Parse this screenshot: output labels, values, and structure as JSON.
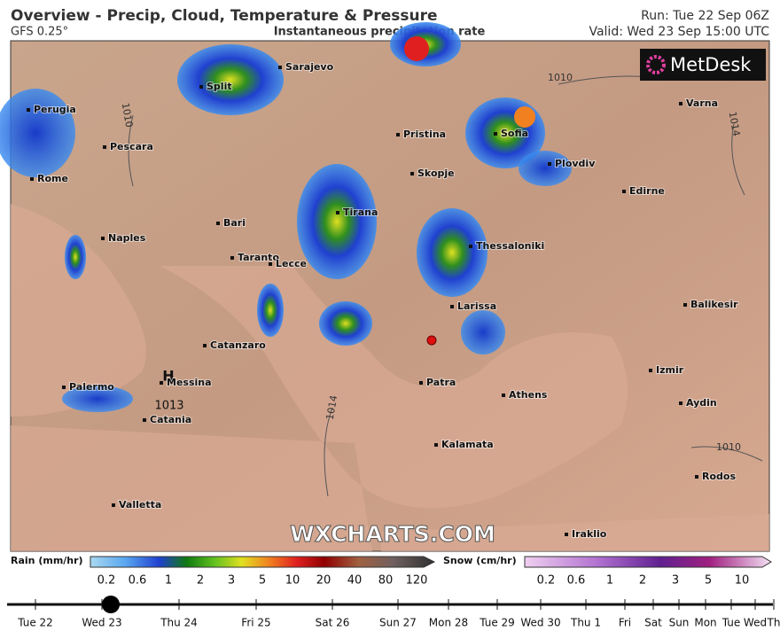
{
  "header": {
    "title": "Overview - Precip, Cloud, Temperature & Pressure",
    "model": "GFS 0.25°",
    "subtitle": "Instantaneous precipitation rate",
    "run": "Run: Tue 22 Sep 06Z",
    "valid": "Valid: Wed 23 Sep 15:00 UTC"
  },
  "map": {
    "logo": "MetDesk",
    "watermark": "WXCHARTS.COM",
    "cities": [
      "Sarajevo",
      "Split",
      "Perugia",
      "Pescara",
      "Rome",
      "Naples",
      "Bari",
      "Taranto",
      "Lecce",
      "Catanzaro",
      "Messina",
      "Palermo",
      "Catania",
      "Valletta",
      "Pristina",
      "Skopje",
      "Tirana",
      "Thessaloniki",
      "Sofia",
      "Plovdiv",
      "Edirne",
      "Varna",
      "Larissa",
      "Patra",
      "Athens",
      "Kalamata",
      "Izmir",
      "Balikesir",
      "Aydin",
      "Rodos",
      "Iraklio"
    ],
    "isobars": [
      "1010",
      "1010",
      "1014",
      "1014",
      "1010"
    ],
    "high": {
      "symbol": "H",
      "pressure": "1013"
    }
  },
  "legend": {
    "rain": {
      "title": "Rain (mm/hr)",
      "labels": [
        "0.2",
        "0.6",
        "1",
        "2",
        "3",
        "5",
        "10",
        "20",
        "40",
        "80",
        "120"
      ]
    },
    "snow": {
      "title": "Snow (cm/hr)",
      "labels": [
        "0.2",
        "0.6",
        "1",
        "2",
        "3",
        "5",
        "10"
      ]
    }
  },
  "timeline": [
    "Tue 22",
    "Wed 23",
    "Thu 24",
    "Fri 25",
    "Sat 26",
    "Sun 27",
    "Mon 28",
    "Tue 29",
    "Wed 30",
    "Thu 1",
    "Fri",
    "Sat",
    "Sun",
    "Mon",
    "Tue",
    "Wed",
    "Th"
  ]
}
